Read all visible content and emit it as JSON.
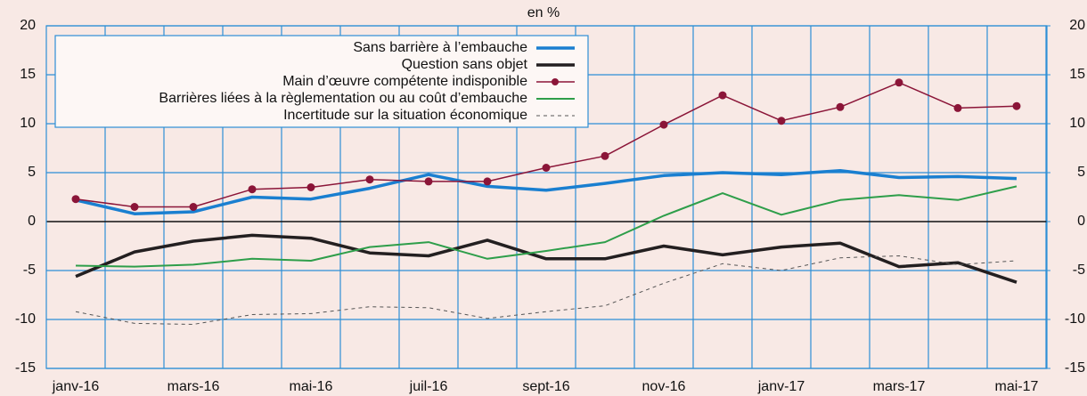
{
  "chart_data": {
    "type": "line",
    "subtitle": "en %",
    "categories": [
      "janv-16",
      null,
      "mars-16",
      null,
      "mai-16",
      null,
      "juil-16",
      null,
      "sept-16",
      null,
      "nov-16",
      null,
      "janv-17",
      null,
      "mars-17",
      null,
      "mai-17"
    ],
    "ylim": [
      -15,
      20
    ],
    "yticks": [
      -15,
      -10,
      -5,
      0,
      5,
      10,
      15,
      20
    ],
    "y2lim": [
      -15,
      20
    ],
    "y2ticks": [
      -15,
      -10,
      -5,
      0,
      5,
      10,
      15,
      20
    ],
    "grid": true,
    "legend": "top-left",
    "series": [
      {
        "name": "Sans barrière à l’embauche",
        "color": "#1a7fd0",
        "style": "thick",
        "values": [
          2.2,
          0.8,
          1.0,
          2.5,
          2.3,
          3.4,
          4.8,
          3.6,
          3.2,
          3.9,
          4.7,
          5.0,
          4.8,
          5.2,
          4.5,
          4.6,
          4.4
        ]
      },
      {
        "name": "Question sans objet",
        "color": "#231f20",
        "style": "thick",
        "values": [
          -5.6,
          -3.1,
          -2.0,
          -1.4,
          -1.7,
          -3.2,
          -3.5,
          -1.9,
          -3.8,
          -3.8,
          -2.5,
          -3.4,
          -2.6,
          -2.2,
          -4.6,
          -4.2,
          -6.2
        ]
      },
      {
        "name": "Main d’œuvre compétente indisponible",
        "color": "#8b1538",
        "style": "markers",
        "values": [
          2.3,
          1.5,
          1.5,
          3.3,
          3.5,
          4.3,
          4.1,
          4.1,
          5.5,
          6.7,
          9.9,
          12.9,
          10.3,
          11.7,
          14.2,
          11.6,
          11.8
        ]
      },
      {
        "name": "Barrières liées à la règlementation ou au coût d’embauche",
        "color": "#2e9e4a",
        "style": "thin",
        "values": [
          -4.5,
          -4.6,
          -4.4,
          -3.8,
          -4.0,
          -2.6,
          -2.1,
          -3.8,
          -3.0,
          -2.1,
          0.6,
          2.9,
          0.7,
          2.2,
          2.7,
          2.2,
          3.6
        ]
      },
      {
        "name": "Incertitude sur la situation économique",
        "color": "#555555",
        "style": "dashed",
        "values": [
          -9.2,
          -10.4,
          -10.5,
          -9.5,
          -9.4,
          -8.7,
          -8.8,
          -9.9,
          -9.2,
          -8.6,
          -6.3,
          -4.3,
          -5.0,
          -3.7,
          -3.5,
          -4.4,
          -4.0
        ]
      }
    ]
  }
}
